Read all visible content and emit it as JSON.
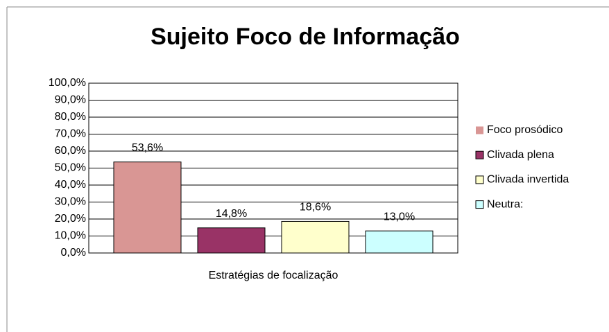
{
  "chart_data": {
    "type": "bar",
    "title": "Sujeito Foco de Informação",
    "categories": [
      "Estratégias de focalização"
    ],
    "series": [
      {
        "name": "Foco prosódico",
        "color": "#d99694",
        "values": [
          53.6
        ],
        "value_labels": [
          "53,6%"
        ]
      },
      {
        "name": "Clivada plena",
        "color": "#993366",
        "values": [
          14.8
        ],
        "value_labels": [
          "14,8%"
        ]
      },
      {
        "name": "Clivada invertida",
        "color": "#ffffcc",
        "values": [
          18.6
        ],
        "value_labels": [
          "18,6%"
        ]
      },
      {
        "name": "Neutra:",
        "color": "#ccffff",
        "values": [
          13.0
        ],
        "value_labels": [
          "13,0%"
        ]
      }
    ],
    "ylim": [
      0,
      100
    ],
    "yticks": [
      {
        "value": 0,
        "label": "0,0%"
      },
      {
        "value": 10,
        "label": "10,0%"
      },
      {
        "value": 20,
        "label": "20,0%"
      },
      {
        "value": 30,
        "label": "30,0%"
      },
      {
        "value": 40,
        "label": "40,0%"
      },
      {
        "value": 50,
        "label": "50,0%"
      },
      {
        "value": 60,
        "label": "60,0%"
      },
      {
        "value": 70,
        "label": "70,0%"
      },
      {
        "value": 80,
        "label": "80,0%"
      },
      {
        "value": 90,
        "label": "90,0%"
      },
      {
        "value": 100,
        "label": "100,0%"
      }
    ],
    "grid": true,
    "legend": "right"
  }
}
